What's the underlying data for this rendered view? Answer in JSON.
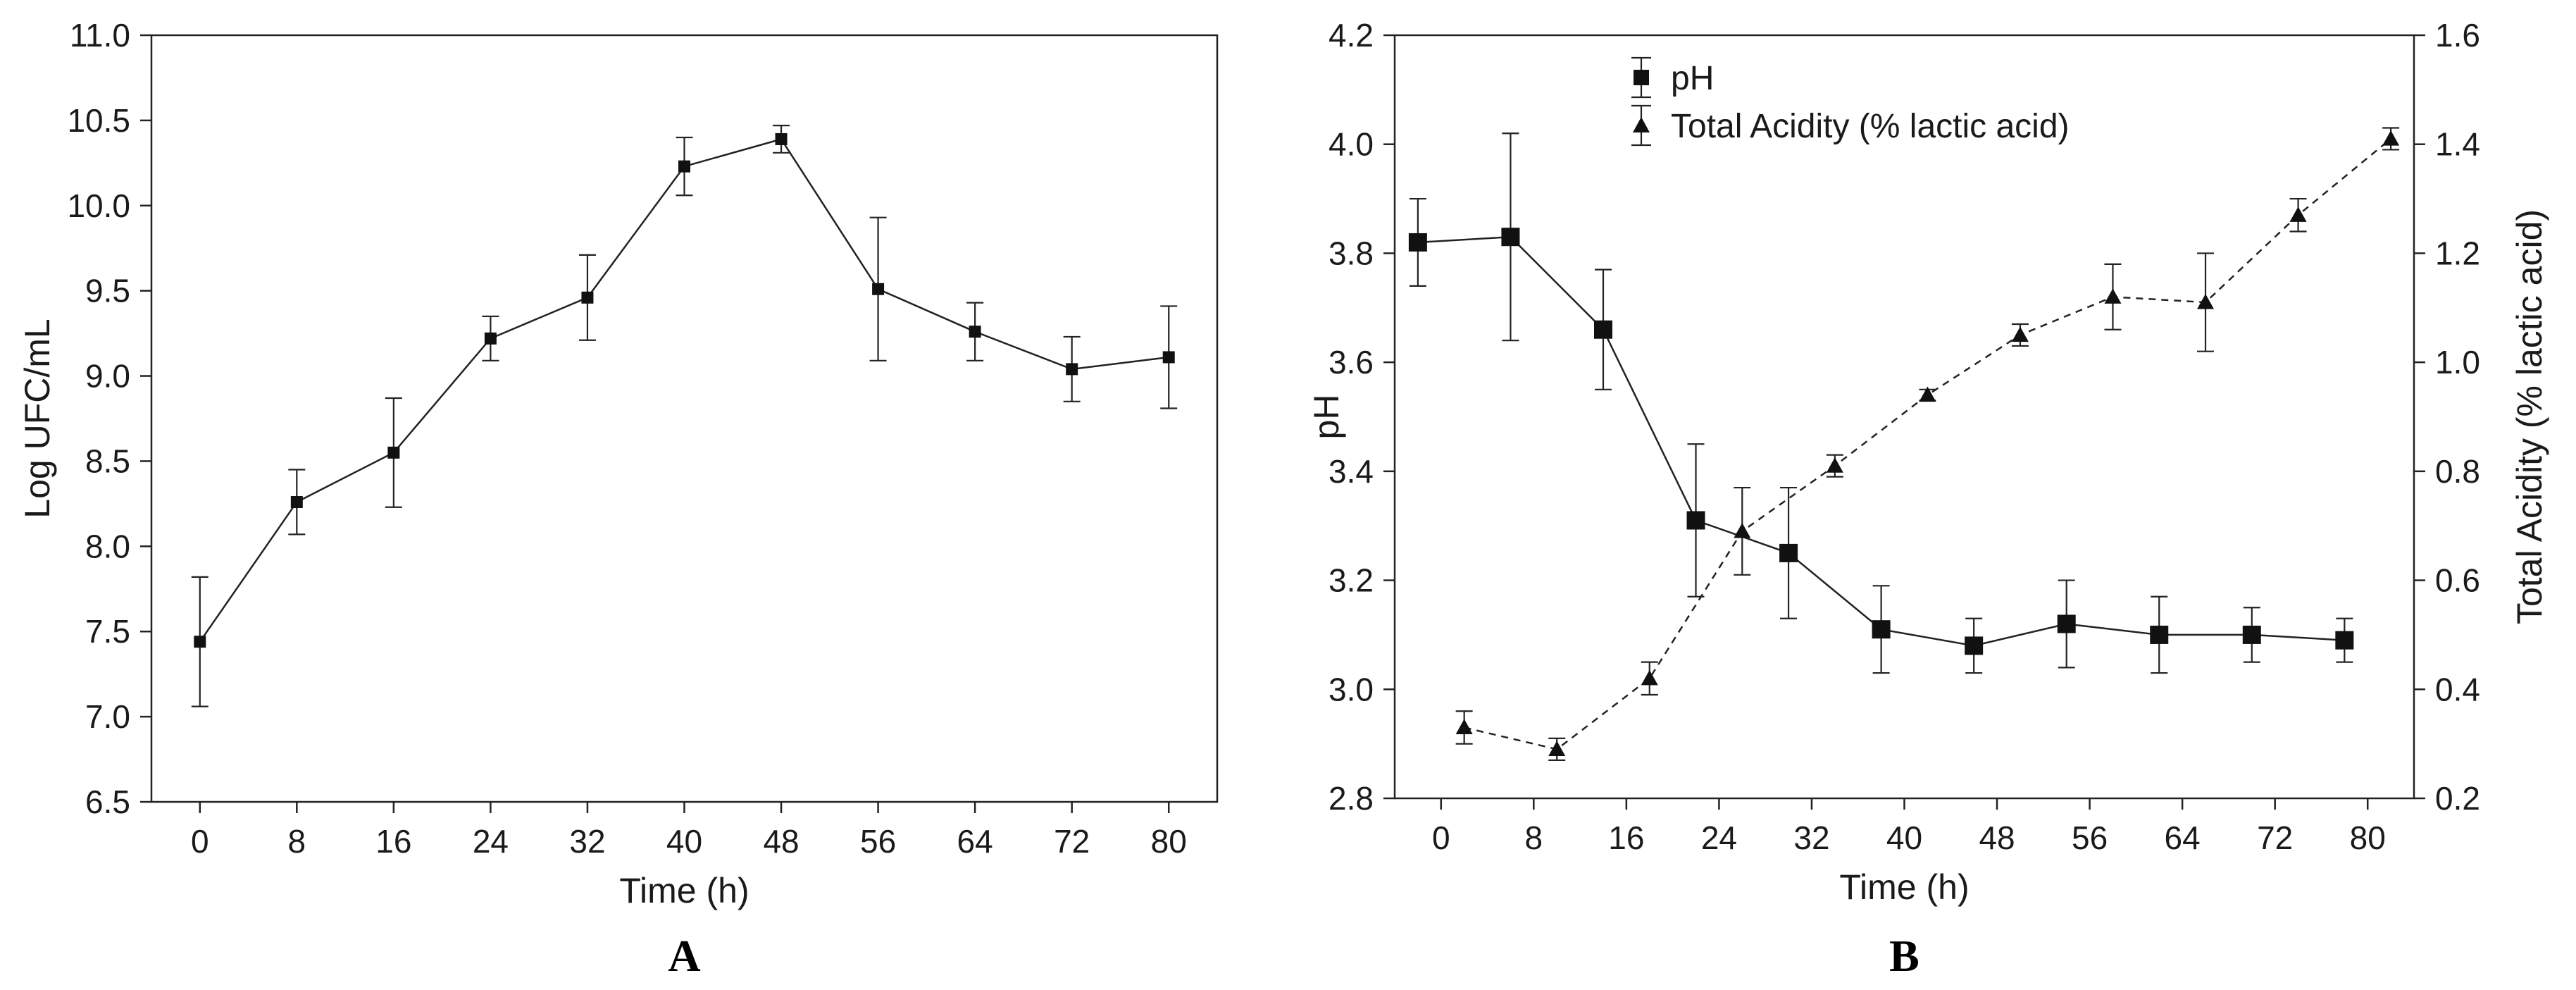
{
  "chart_data": [
    {
      "panel": "A",
      "type": "line",
      "panel_label": "A",
      "xlabel": "Time (h)",
      "ylabel": "Log UFC/mL",
      "xlim": [
        -4,
        84
      ],
      "ylim": [
        6.5,
        11.0
      ],
      "x_ticks": [
        "0",
        "8",
        "16",
        "24",
        "32",
        "40",
        "48",
        "56",
        "64",
        "72",
        "80"
      ],
      "y_ticks": [
        "6.5",
        "7.0",
        "7.5",
        "8.0",
        "8.5",
        "9.0",
        "9.5",
        "10.0",
        "10.5",
        "11.0"
      ],
      "series": [
        {
          "name": "Log UFC/mL",
          "marker": "square",
          "line": "solid",
          "x": [
            0,
            8,
            16,
            24,
            32,
            40,
            48,
            56,
            64,
            72,
            80
          ],
          "values": [
            7.44,
            8.26,
            8.55,
            9.22,
            9.46,
            10.23,
            10.39,
            9.51,
            9.26,
            9.04,
            9.11
          ],
          "errors": [
            0.38,
            0.19,
            0.32,
            0.13,
            0.25,
            0.17,
            0.08,
            0.42,
            0.17,
            0.19,
            0.3
          ]
        }
      ]
    },
    {
      "panel": "B",
      "type": "line",
      "panel_label": "B",
      "xlabel": "Time (h)",
      "ylabel": "pH",
      "ylabel_right": "Total Acidity (% lactic acid)",
      "xlim": [
        -4,
        84
      ],
      "ylim": [
        2.8,
        4.2
      ],
      "ylim_right": [
        0.2,
        1.6
      ],
      "x_ticks": [
        "0",
        "8",
        "16",
        "24",
        "32",
        "40",
        "48",
        "56",
        "64",
        "72",
        "80"
      ],
      "y_ticks": [
        "2.8",
        "3.0",
        "3.2",
        "3.4",
        "3.6",
        "3.8",
        "4.0",
        "4.2"
      ],
      "y_ticks_right": [
        "0.2",
        "0.4",
        "0.6",
        "0.8",
        "1.0",
        "1.2",
        "1.4",
        "1.6"
      ],
      "legend": [
        "pH",
        "Total Acidity (% lactic acid)"
      ],
      "legend_location": "top-center",
      "series": [
        {
          "name": "pH",
          "axis": "left",
          "marker": "square",
          "line": "solid",
          "x": [
            -2,
            6,
            14,
            22,
            30,
            38,
            46,
            54,
            62,
            70,
            78
          ],
          "values": [
            3.82,
            3.83,
            3.66,
            3.31,
            3.25,
            3.11,
            3.08,
            3.12,
            3.1,
            3.1,
            3.09
          ],
          "errors": [
            0.08,
            0.19,
            0.11,
            0.14,
            0.12,
            0.08,
            0.05,
            0.08,
            0.07,
            0.05,
            0.04
          ]
        },
        {
          "name": "Total Acidity (% lactic acid)",
          "axis": "right",
          "marker": "triangle",
          "line": "dashed",
          "x": [
            2,
            10,
            18,
            26,
            34,
            42,
            50,
            58,
            66,
            74,
            82
          ],
          "values": [
            0.33,
            0.29,
            0.42,
            0.69,
            0.81,
            0.94,
            1.05,
            1.12,
            1.11,
            1.27,
            1.41
          ],
          "errors": [
            0.03,
            0.02,
            0.03,
            0.08,
            0.02,
            0.01,
            0.02,
            0.06,
            0.09,
            0.03,
            0.02
          ]
        }
      ]
    }
  ]
}
